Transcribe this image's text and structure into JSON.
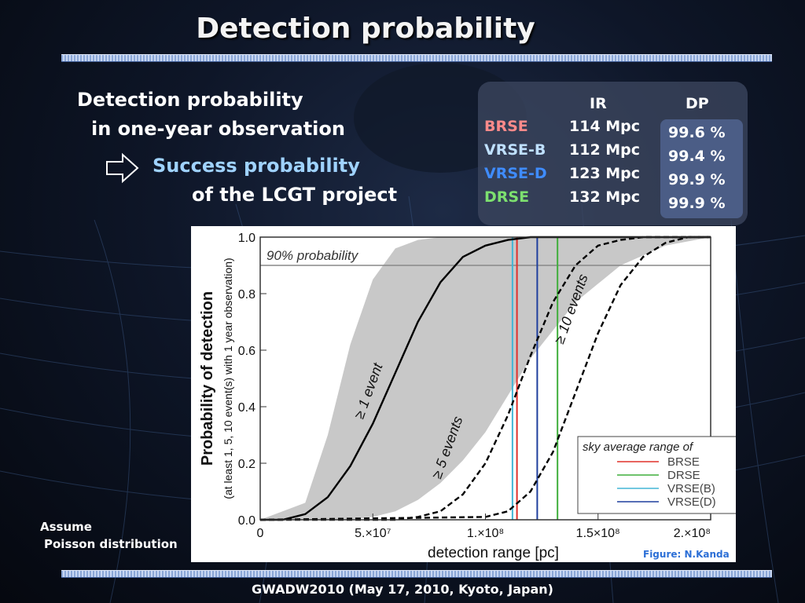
{
  "title": "Detection probability",
  "left_text": {
    "line1": "Detection probability",
    "line2": "in one-year observation",
    "line3": "Success probability",
    "line4": "of the LCGT project"
  },
  "ir_table": {
    "col_ir": "IR",
    "col_dp": "DP",
    "rows": [
      {
        "name": "BRSE",
        "ir": "114 Mpc",
        "dp": "99.6 %",
        "color": "#ff8a8a"
      },
      {
        "name": "VRSE-B",
        "ir": "112 Mpc",
        "dp": "99.4 %",
        "color": "#bfe0ff"
      },
      {
        "name": "VRSE-D",
        "ir": "123 Mpc",
        "dp": "99.9 %",
        "color": "#3f8cff"
      },
      {
        "name": "DRSE",
        "ir": "132 Mpc",
        "dp": "99.9 %",
        "color": "#7de06f"
      }
    ]
  },
  "assume": {
    "line1": "Assume",
    "line2": "Poisson distribution"
  },
  "figure_credit": "Figure: N.Kanda",
  "footer": "GWADW2010  (May 17, 2010, Kyoto, Japan)",
  "chart_data": {
    "type": "line",
    "xlabel": "detection range [pc]",
    "ylabel": "Probability of detection",
    "ylabel2": "(at least 1, 5, 10 event(s) with 1 year observation)",
    "xlim": [
      0,
      200000000
    ],
    "ylim": [
      0,
      1
    ],
    "x_ticks": [
      {
        "value": 0,
        "label": "0"
      },
      {
        "value": 50000000,
        "label": "5.×10⁷"
      },
      {
        "value": 100000000,
        "label": "1.×10⁸"
      },
      {
        "value": 150000000,
        "label": "1.5×10⁸"
      },
      {
        "value": 200000000,
        "label": "2.×10⁸"
      }
    ],
    "y_ticks": [
      {
        "value": 0,
        "label": "0.0"
      },
      {
        "value": 0.2,
        "label": "0.2"
      },
      {
        "value": 0.4,
        "label": "0.4"
      },
      {
        "value": 0.6,
        "label": "0.6"
      },
      {
        "value": 0.8,
        "label": "0.8"
      },
      {
        "value": 1,
        "label": "1.0"
      }
    ],
    "threshold": {
      "y": 0.9,
      "label": "90% probability"
    },
    "curves": [
      {
        "label": "≥ 1 event",
        "style": "solid",
        "x": [
          0,
          10000000,
          20000000,
          30000000,
          40000000,
          50000000,
          60000000,
          70000000,
          80000000,
          90000000,
          100000000,
          110000000,
          120000000,
          140000000,
          160000000,
          200000000
        ],
        "y": [
          0,
          0.0,
          0.02,
          0.08,
          0.19,
          0.34,
          0.52,
          0.7,
          0.84,
          0.93,
          0.97,
          0.99,
          1.0,
          1.0,
          1.0,
          1.0
        ]
      },
      {
        "label": "≥ 5 events",
        "style": "dashed",
        "x": [
          0,
          50000000,
          60000000,
          70000000,
          80000000,
          90000000,
          100000000,
          110000000,
          120000000,
          130000000,
          140000000,
          150000000,
          160000000,
          170000000,
          200000000
        ],
        "y": [
          0,
          0.0,
          0.0,
          0.01,
          0.03,
          0.09,
          0.2,
          0.37,
          0.58,
          0.77,
          0.9,
          0.97,
          0.99,
          1.0,
          1.0
        ],
        "label_pos": {
          "x": 85000000,
          "y": 0.25
        }
      },
      {
        "label": "≥ 10 events",
        "style": "dashed",
        "x": [
          0,
          100000000,
          110000000,
          120000000,
          130000000,
          140000000,
          150000000,
          160000000,
          170000000,
          180000000,
          190000000,
          200000000
        ],
        "y": [
          0,
          0.01,
          0.03,
          0.1,
          0.24,
          0.45,
          0.66,
          0.83,
          0.93,
          0.98,
          1.0,
          1.0
        ],
        "label_pos": {
          "x": 140000000,
          "y": 0.74
        }
      }
    ],
    "curve_label_pos_1": {
      "x": 50000000,
      "y": 0.45
    },
    "band": {
      "x": [
        0,
        20000000,
        30000000,
        40000000,
        50000000,
        60000000,
        70000000,
        80000000,
        90000000,
        100000000,
        110000000,
        120000000,
        140000000,
        160000000,
        180000000,
        200000000
      ],
      "lower": [
        0,
        0.0,
        0.0,
        0.0,
        0.01,
        0.03,
        0.07,
        0.13,
        0.21,
        0.31,
        0.44,
        0.57,
        0.77,
        0.9,
        0.97,
        1.0
      ],
      "upper": [
        0,
        0.06,
        0.3,
        0.62,
        0.85,
        0.96,
        0.99,
        1.0,
        1.0,
        1.0,
        1.0,
        1.0,
        1.0,
        1.0,
        1.0,
        1.0
      ]
    },
    "vlines": [
      {
        "name": "BRSE",
        "x": 114000000,
        "color": "#e0302a"
      },
      {
        "name": "DRSE",
        "x": 132000000,
        "color": "#3fae3b"
      },
      {
        "name": "VRSE(B)",
        "x": 112000000,
        "color": "#43b6d6"
      },
      {
        "name": "VRSE(D)",
        "x": 123000000,
        "color": "#1f3f9e"
      }
    ],
    "legend": {
      "title": "sky average range of",
      "position": "bottom-right"
    },
    "grid": false
  }
}
